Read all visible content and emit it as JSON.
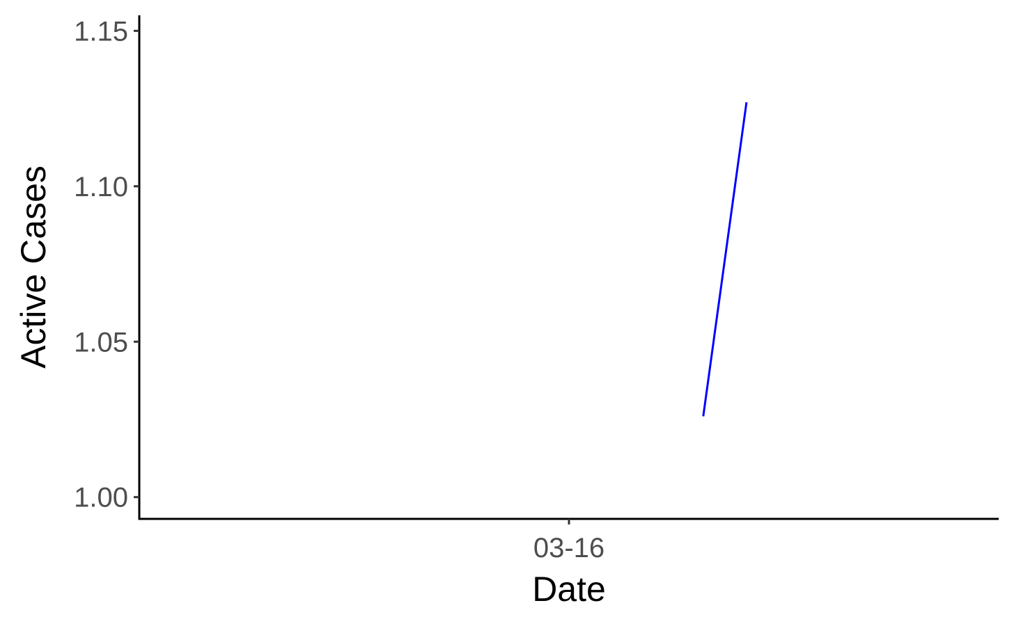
{
  "chart_data": {
    "type": "line",
    "title": "",
    "xlabel": "Date",
    "ylabel": "Active Cases",
    "x_ticks": [
      "03-16"
    ],
    "y_ticks": [
      "1.00",
      "1.05",
      "1.10",
      "1.15"
    ],
    "ylim": [
      0.993,
      1.155
    ],
    "xlim": [
      "03-15",
      "03-17"
    ],
    "grid": false,
    "legend": "none",
    "series": [
      {
        "color": "#0000ff",
        "points": [
          {
            "x": "03-16T07:30",
            "y": 1.026
          },
          {
            "x": "03-16T09:55",
            "y": 1.127
          }
        ]
      }
    ]
  }
}
